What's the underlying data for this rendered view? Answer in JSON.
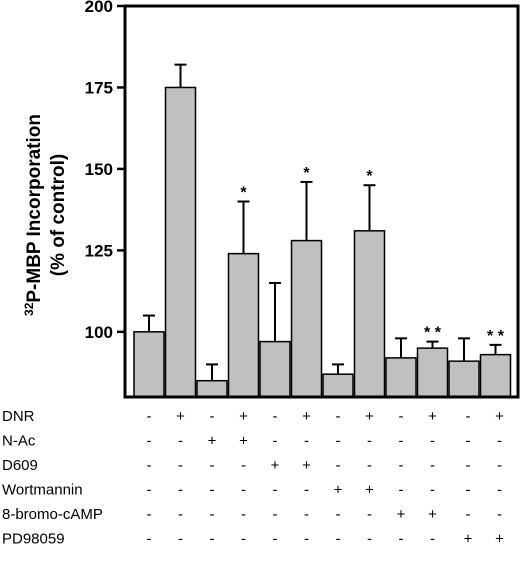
{
  "chart_data": {
    "type": "bar",
    "ylabel_line1_sup": "32",
    "ylabel_line1_rest": "P-MBP Incorporation",
    "ylabel_line2": "(% of control)",
    "ylim": [
      80,
      200
    ],
    "yticks": [
      "100",
      "125",
      "150",
      "175",
      "200"
    ],
    "ytick_values": [
      100,
      125,
      150,
      175,
      200
    ],
    "bar_color": "#c0c0c0",
    "values": [
      100,
      175,
      85,
      124,
      97,
      128,
      87,
      131,
      92,
      95,
      91,
      93
    ],
    "error_upper": [
      105,
      182,
      90,
      140,
      115,
      146,
      90,
      145,
      98,
      97,
      98,
      96
    ],
    "significance": [
      "",
      "",
      "",
      "*",
      "",
      "*",
      "",
      "*",
      "",
      "* *",
      "",
      "* *"
    ],
    "treatments": [
      {
        "label": "DNR",
        "signs": [
          "-",
          "+",
          "-",
          "+",
          "-",
          "+",
          "-",
          "+",
          "-",
          "+",
          "-",
          "+"
        ]
      },
      {
        "label": "N-Ac",
        "signs": [
          "-",
          "-",
          "+",
          "+",
          "-",
          "-",
          "-",
          "-",
          "-",
          "-",
          "-",
          "-"
        ]
      },
      {
        "label": "D609",
        "signs": [
          "-",
          "-",
          "-",
          "-",
          "+",
          "+",
          "-",
          "-",
          "-",
          "-",
          "-",
          "-"
        ]
      },
      {
        "label": "Wortmannin",
        "signs": [
          "-",
          "-",
          "-",
          "-",
          "-",
          "-",
          "+",
          "+",
          "-",
          "-",
          "-",
          "-"
        ]
      },
      {
        "label": "8-bromo-cAMP",
        "signs": [
          "-",
          "-",
          "-",
          "-",
          "-",
          "-",
          "-",
          "-",
          "+",
          "+",
          "-",
          "-"
        ]
      },
      {
        "label": "PD98059",
        "signs": [
          "-",
          "-",
          "-",
          "-",
          "-",
          "-",
          "-",
          "-",
          "-",
          "-",
          "+",
          "+"
        ]
      }
    ]
  }
}
